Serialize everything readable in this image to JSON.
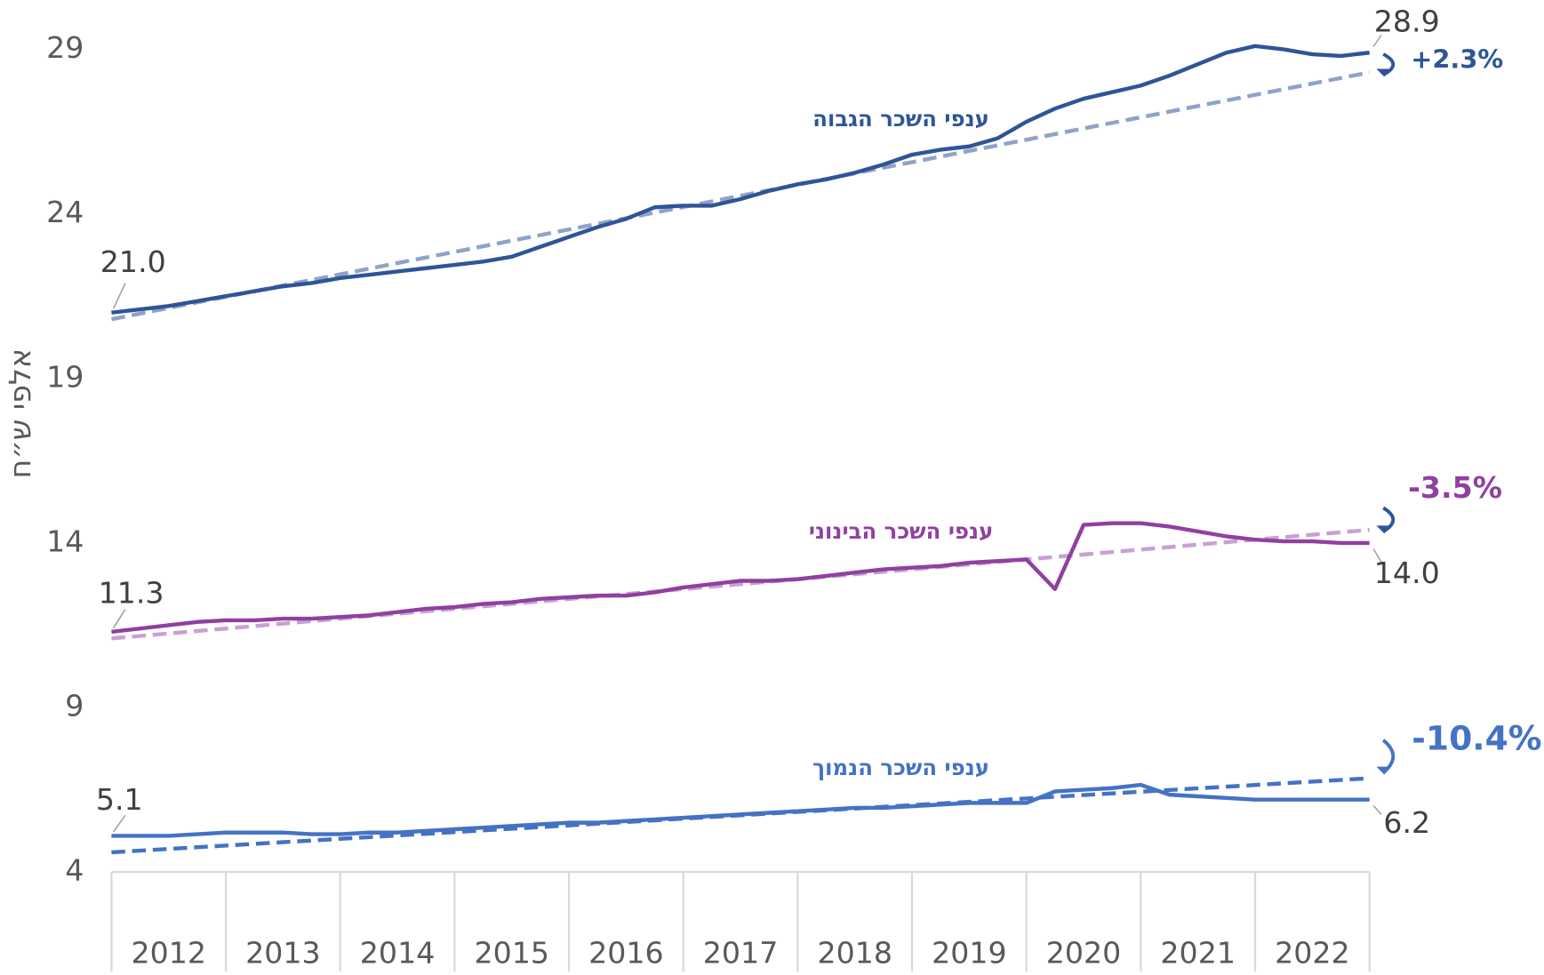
{
  "chart_data": {
    "type": "line",
    "y_label": "אלפי ש״ח",
    "categories": [
      "2012",
      "2013",
      "2014",
      "2015",
      "2016",
      "2017",
      "2018",
      "2019",
      "2020",
      "2021",
      "2022"
    ],
    "x": [
      2012,
      2012.25,
      2012.5,
      2012.75,
      2013,
      2013.25,
      2013.5,
      2013.75,
      2014,
      2014.25,
      2014.5,
      2014.75,
      2015,
      2015.25,
      2015.5,
      2015.75,
      2016,
      2016.25,
      2016.5,
      2016.75,
      2017,
      2017.25,
      2017.5,
      2017.75,
      2018,
      2018.25,
      2018.5,
      2018.75,
      2019,
      2019.25,
      2019.5,
      2019.75,
      2020,
      2020.25,
      2020.5,
      2020.75,
      2021,
      2021.25,
      2021.5,
      2021.75,
      2022,
      2022.25,
      2022.5,
      2022.75,
      2023
    ],
    "xlim": [
      2012,
      2023
    ],
    "ylim": [
      4,
      30.5
    ],
    "yticks": [
      4,
      9,
      14,
      19,
      24,
      29
    ],
    "series": [
      {
        "name": "ענפי השכר הגבוה",
        "color": "#2f5597",
        "trend_color": "#8fa3c8",
        "change": "+2.3%",
        "values": [
          21.0,
          21.1,
          21.2,
          21.35,
          21.5,
          21.65,
          21.8,
          21.9,
          22.05,
          22.15,
          22.25,
          22.35,
          22.45,
          22.55,
          22.7,
          23.0,
          23.3,
          23.6,
          23.85,
          24.2,
          24.25,
          24.25,
          24.45,
          24.7,
          24.9,
          25.05,
          25.25,
          25.5,
          25.8,
          25.95,
          26.05,
          26.3,
          26.8,
          27.2,
          27.5,
          27.7,
          27.9,
          28.2,
          28.55,
          28.9,
          29.1,
          29.0,
          28.85,
          28.8,
          28.9
        ],
        "value_labels": [
          "21.0",
          null,
          null,
          null,
          null,
          null,
          null,
          null,
          null,
          null,
          null,
          null,
          null,
          null,
          null,
          null,
          null,
          null,
          null,
          null,
          null,
          null,
          null,
          null,
          null,
          null,
          null,
          null,
          null,
          null,
          null,
          null,
          null,
          null,
          null,
          null,
          null,
          null,
          null,
          null,
          null,
          null,
          null,
          null,
          "28.9"
        ],
        "trend": {
          "x": [
            2012,
            2023
          ],
          "values": [
            20.8,
            28.3
          ]
        }
      },
      {
        "name": "ענפי השכר הבינוני",
        "color": "#9040a0",
        "trend_color": "#c9a0d4",
        "change": "-3.5%",
        "values": [
          11.3,
          11.4,
          11.5,
          11.6,
          11.65,
          11.65,
          11.7,
          11.7,
          11.75,
          11.8,
          11.9,
          12.0,
          12.05,
          12.15,
          12.2,
          12.3,
          12.35,
          12.4,
          12.4,
          12.5,
          12.65,
          12.75,
          12.85,
          12.85,
          12.9,
          13.0,
          13.1,
          13.2,
          13.25,
          13.3,
          13.4,
          13.45,
          13.5,
          12.6,
          14.55,
          14.6,
          14.6,
          14.5,
          14.35,
          14.2,
          14.1,
          14.05,
          14.05,
          14.0,
          14.0
        ],
        "value_labels": [
          "11.3",
          null,
          null,
          null,
          null,
          null,
          null,
          null,
          null,
          null,
          null,
          null,
          null,
          null,
          null,
          null,
          null,
          null,
          null,
          null,
          null,
          null,
          null,
          null,
          null,
          null,
          null,
          null,
          null,
          null,
          null,
          null,
          null,
          null,
          null,
          null,
          null,
          null,
          null,
          null,
          null,
          null,
          null,
          null,
          "14.0"
        ],
        "trend": {
          "x": [
            2012,
            2023
          ],
          "values": [
            11.1,
            14.4
          ]
        }
      },
      {
        "name": "ענפי השכר הנמוך",
        "color": "#4472c4",
        "trend_color": "#4472c4",
        "change": "-10.4%",
        "values": [
          5.1,
          5.1,
          5.1,
          5.15,
          5.2,
          5.2,
          5.2,
          5.15,
          5.15,
          5.2,
          5.2,
          5.25,
          5.3,
          5.35,
          5.4,
          5.45,
          5.5,
          5.5,
          5.55,
          5.6,
          5.65,
          5.7,
          5.75,
          5.8,
          5.85,
          5.9,
          5.95,
          5.95,
          6.0,
          6.05,
          6.1,
          6.1,
          6.1,
          6.45,
          6.5,
          6.55,
          6.65,
          6.35,
          6.3,
          6.25,
          6.2,
          6.2,
          6.2,
          6.2,
          6.2
        ],
        "value_labels": [
          "5.1",
          null,
          null,
          null,
          null,
          null,
          null,
          null,
          null,
          null,
          null,
          null,
          null,
          null,
          null,
          null,
          null,
          null,
          null,
          null,
          null,
          null,
          null,
          null,
          null,
          null,
          null,
          null,
          null,
          null,
          null,
          null,
          null,
          null,
          null,
          null,
          null,
          null,
          null,
          null,
          null,
          null,
          null,
          null,
          "6.2"
        ],
        "trend": {
          "x": [
            2012,
            2023
          ],
          "values": [
            4.6,
            6.85
          ]
        }
      }
    ]
  }
}
